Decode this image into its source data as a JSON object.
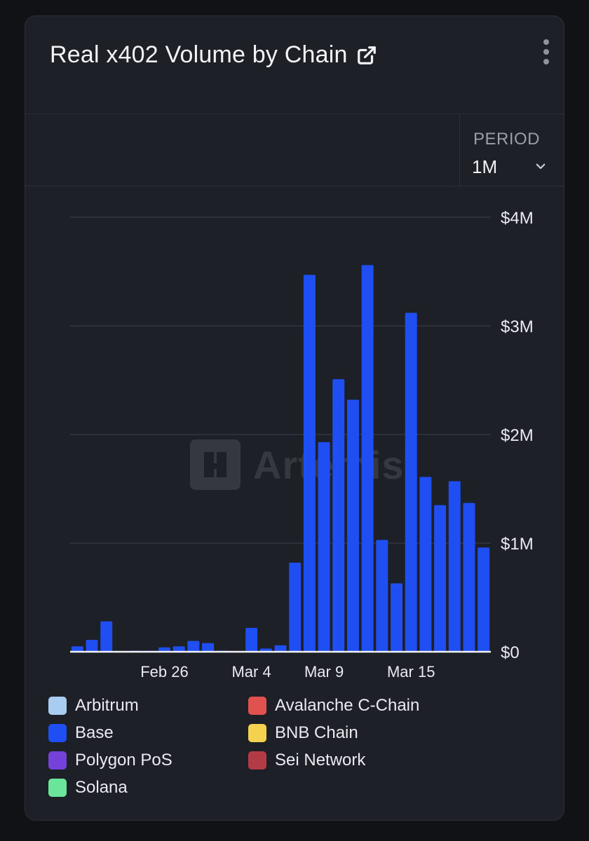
{
  "card": {
    "title": "Real x402 Volume by Chain",
    "period_label": "PERIOD",
    "period_value": "1M",
    "watermark": "Artemis"
  },
  "legend": [
    {
      "label": "Arbitrum",
      "color": "#a9cdf0"
    },
    {
      "label": "Avalanche C-Chain",
      "color": "#e0514f"
    },
    {
      "label": "Base",
      "color": "#1f4ff2"
    },
    {
      "label": "BNB Chain",
      "color": "#f5d150"
    },
    {
      "label": "Polygon PoS",
      "color": "#7442d8"
    },
    {
      "label": "Sei Network",
      "color": "#b23b46"
    },
    {
      "label": "Solana",
      "color": "#6ae59a"
    }
  ],
  "chart_data": {
    "type": "bar",
    "title": "Real x402 Volume by Chain",
    "series": [
      {
        "name": "Base",
        "color": "#1f4ff2",
        "values": [
          0.05,
          0.11,
          0.28,
          0,
          0.01,
          0.01,
          0.04,
          0.05,
          0.1,
          0.08,
          0.01,
          0,
          0.22,
          0.03,
          0.06,
          0.82,
          3.47,
          1.93,
          2.51,
          2.32,
          3.56,
          1.03,
          0.63,
          3.12,
          1.61,
          1.35,
          1.57,
          1.37,
          0.96
        ]
      }
    ],
    "x_tick_labels": [
      {
        "index": 6,
        "label": "Feb 26"
      },
      {
        "index": 12,
        "label": "Mar 4"
      },
      {
        "index": 17,
        "label": "Mar 9"
      },
      {
        "index": 23,
        "label": "Mar 15"
      }
    ],
    "y_ticks": [
      {
        "value": 0,
        "label": "$0"
      },
      {
        "value": 1,
        "label": "$1M"
      },
      {
        "value": 2,
        "label": "$2M"
      },
      {
        "value": 3,
        "label": "$3M"
      },
      {
        "value": 4,
        "label": "$4M"
      }
    ],
    "ylim": [
      0,
      4
    ],
    "yunit": "USD millions",
    "grid": true,
    "legend_position": "bottom"
  }
}
